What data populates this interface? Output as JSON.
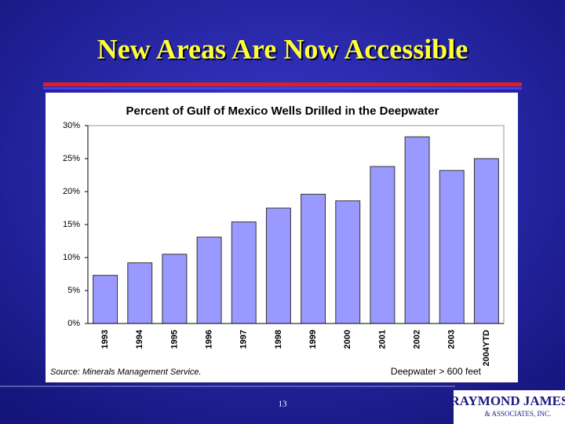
{
  "slide_title": "New Areas Are Now Accessible",
  "chart_data": {
    "type": "bar",
    "title": "Percent of Gulf of Mexico Wells Drilled in the Deepwater",
    "categories": [
      "1993",
      "1994",
      "1995",
      "1996",
      "1997",
      "1998",
      "1999",
      "2000",
      "2001",
      "2002",
      "2003",
      "2004YTD"
    ],
    "values": [
      7.3,
      9.2,
      10.5,
      13.1,
      15.4,
      17.5,
      19.6,
      18.6,
      23.8,
      28.3,
      23.2,
      25.0
    ],
    "color": "#9999ff",
    "ylim": [
      0,
      30
    ],
    "yticks": [
      {
        "value": 0,
        "label": "0%"
      },
      {
        "value": 5,
        "label": "5%"
      },
      {
        "value": 10,
        "label": "10%"
      },
      {
        "value": 15,
        "label": "15%"
      },
      {
        "value": 20,
        "label": "20%"
      },
      {
        "value": 25,
        "label": "25%"
      },
      {
        "value": 30,
        "label": "30%"
      }
    ],
    "source": "Source:  Minerals Management Service.",
    "note": "Deepwater > 600 feet"
  },
  "footer": {
    "page_number": "13",
    "logo_line1": "RAYMOND JAMES",
    "logo_line2": "& ASSOCIATES, INC."
  }
}
